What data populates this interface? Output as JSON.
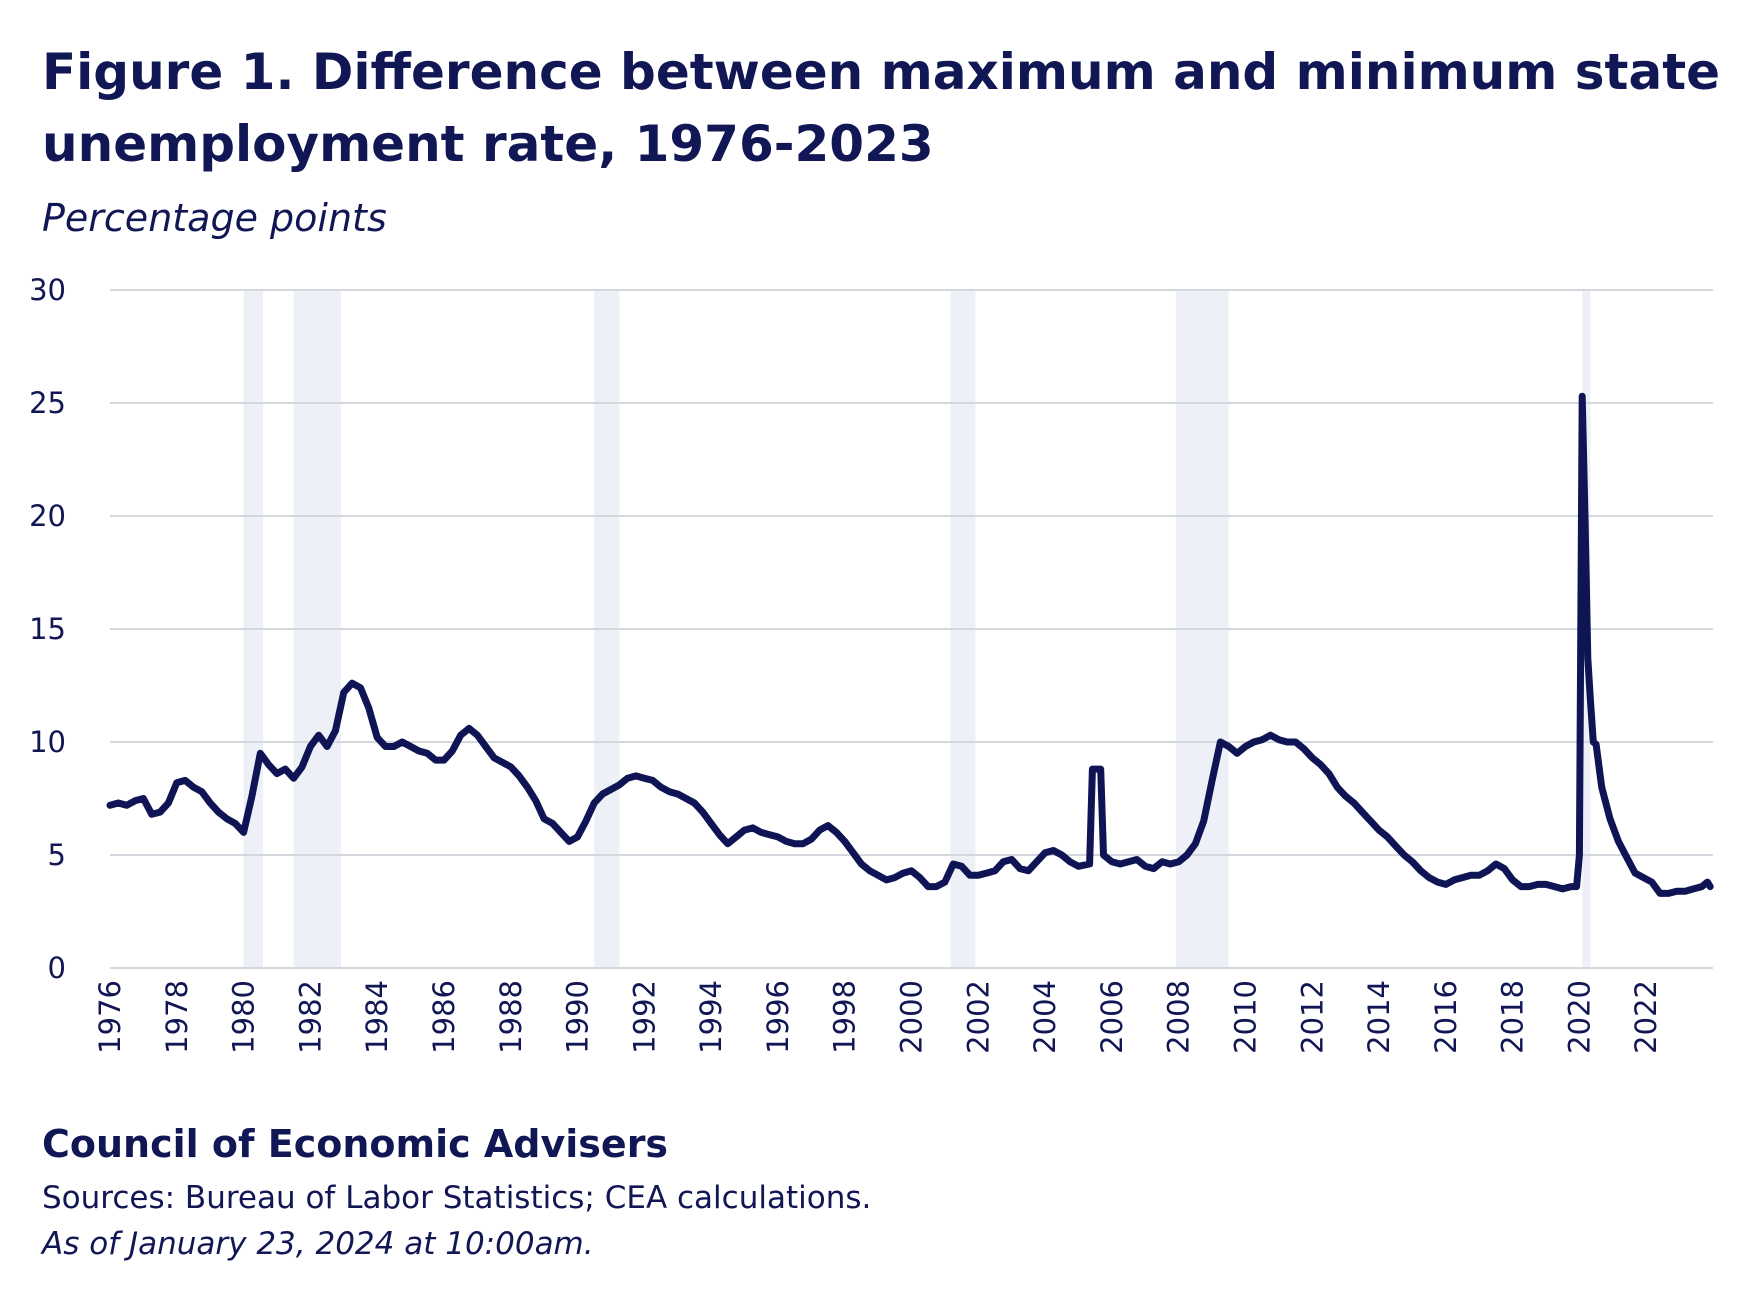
{
  "header": {
    "title": "Figure 1. Difference between maximum and minimum state unemployment rate, 1976-2023",
    "subtitle": "Percentage points"
  },
  "footer": {
    "org": "Council of Economic Advisers",
    "source": "Sources: Bureau of Labor Statistics; CEA calculations.",
    "as_of": "As of January 23, 2024 at 10:00am."
  },
  "colors": {
    "line": "#0f1454",
    "recession_band": "#edf1f7",
    "grid": "#d4d7de",
    "axis_text": "#111654"
  },
  "chart_data": {
    "type": "line",
    "title": "Figure 1. Difference between maximum and minimum state unemployment rate, 1976-2023",
    "subtitle": "Percentage points",
    "xlabel": "",
    "ylabel": "Percentage points",
    "xlim": [
      "1976-01",
      "2023-12"
    ],
    "ylim": [
      0,
      30
    ],
    "y_ticks": [
      "0",
      "5",
      "10",
      "15",
      "20",
      "25",
      "30"
    ],
    "x_ticks": [
      "1976",
      "1978",
      "1980",
      "1982",
      "1984",
      "1986",
      "1988",
      "1990",
      "1992",
      "1994",
      "1996",
      "1998",
      "2000",
      "2002",
      "2004",
      "2006",
      "2008",
      "2010",
      "2012",
      "2014",
      "2016",
      "2018",
      "2020",
      "2022"
    ],
    "x_tick_orientation": "vertical",
    "grid": "horizontal",
    "legend": "none",
    "recessions": [
      {
        "start": "1980-01",
        "end": "1980-07"
      },
      {
        "start": "1981-07",
        "end": "1982-11"
      },
      {
        "start": "1990-07",
        "end": "1991-03"
      },
      {
        "start": "2001-03",
        "end": "2001-11"
      },
      {
        "start": "2007-12",
        "end": "2009-06"
      },
      {
        "start": "2020-02",
        "end": "2020-04"
      }
    ],
    "series": [
      {
        "points": [
          [
            "1976-01",
            7.2
          ],
          [
            "1976-04",
            7.3
          ],
          [
            "1976-07",
            7.2
          ],
          [
            "1976-10",
            7.4
          ],
          [
            "1977-01",
            7.5
          ],
          [
            "1977-04",
            6.8
          ],
          [
            "1977-07",
            6.9
          ],
          [
            "1977-10",
            7.3
          ],
          [
            "1978-01",
            8.2
          ],
          [
            "1978-04",
            8.3
          ],
          [
            "1978-07",
            8.0
          ],
          [
            "1978-10",
            7.8
          ],
          [
            "1979-01",
            7.3
          ],
          [
            "1979-04",
            6.9
          ],
          [
            "1979-07",
            6.6
          ],
          [
            "1979-10",
            6.4
          ],
          [
            "1980-01",
            6.0
          ],
          [
            "1980-04",
            7.6
          ],
          [
            "1980-07",
            9.5
          ],
          [
            "1980-10",
            9.0
          ],
          [
            "1981-01",
            8.6
          ],
          [
            "1981-04",
            8.8
          ],
          [
            "1981-07",
            8.4
          ],
          [
            "1981-10",
            8.9
          ],
          [
            "1982-01",
            9.8
          ],
          [
            "1982-04",
            10.3
          ],
          [
            "1982-07",
            9.8
          ],
          [
            "1982-10",
            10.5
          ],
          [
            "1983-01",
            12.2
          ],
          [
            "1983-04",
            12.6
          ],
          [
            "1983-07",
            12.4
          ],
          [
            "1983-10",
            11.5
          ],
          [
            "1984-01",
            10.2
          ],
          [
            "1984-04",
            9.8
          ],
          [
            "1984-07",
            9.8
          ],
          [
            "1984-10",
            10.0
          ],
          [
            "1985-01",
            9.8
          ],
          [
            "1985-04",
            9.6
          ],
          [
            "1985-07",
            9.5
          ],
          [
            "1985-10",
            9.2
          ],
          [
            "1986-01",
            9.2
          ],
          [
            "1986-04",
            9.6
          ],
          [
            "1986-07",
            10.3
          ],
          [
            "1986-10",
            10.6
          ],
          [
            "1987-01",
            10.3
          ],
          [
            "1987-04",
            9.8
          ],
          [
            "1987-07",
            9.3
          ],
          [
            "1987-10",
            9.1
          ],
          [
            "1988-01",
            8.9
          ],
          [
            "1988-04",
            8.5
          ],
          [
            "1988-07",
            8.0
          ],
          [
            "1988-10",
            7.4
          ],
          [
            "1989-01",
            6.6
          ],
          [
            "1989-04",
            6.4
          ],
          [
            "1989-07",
            6.0
          ],
          [
            "1989-10",
            5.6
          ],
          [
            "1990-01",
            5.8
          ],
          [
            "1990-04",
            6.5
          ],
          [
            "1990-07",
            7.3
          ],
          [
            "1990-10",
            7.7
          ],
          [
            "1991-01",
            7.9
          ],
          [
            "1991-04",
            8.1
          ],
          [
            "1991-07",
            8.4
          ],
          [
            "1991-10",
            8.5
          ],
          [
            "1992-01",
            8.4
          ],
          [
            "1992-04",
            8.3
          ],
          [
            "1992-07",
            8.0
          ],
          [
            "1992-10",
            7.8
          ],
          [
            "1993-01",
            7.7
          ],
          [
            "1993-04",
            7.5
          ],
          [
            "1993-07",
            7.3
          ],
          [
            "1993-10",
            6.9
          ],
          [
            "1994-01",
            6.4
          ],
          [
            "1994-04",
            5.9
          ],
          [
            "1994-07",
            5.5
          ],
          [
            "1994-10",
            5.8
          ],
          [
            "1995-01",
            6.1
          ],
          [
            "1995-04",
            6.2
          ],
          [
            "1995-07",
            6.0
          ],
          [
            "1995-10",
            5.9
          ],
          [
            "1996-01",
            5.8
          ],
          [
            "1996-04",
            5.6
          ],
          [
            "1996-07",
            5.5
          ],
          [
            "1996-10",
            5.5
          ],
          [
            "1997-01",
            5.7
          ],
          [
            "1997-04",
            6.1
          ],
          [
            "1997-07",
            6.3
          ],
          [
            "1997-10",
            6.0
          ],
          [
            "1998-01",
            5.6
          ],
          [
            "1998-04",
            5.1
          ],
          [
            "1998-07",
            4.6
          ],
          [
            "1998-10",
            4.3
          ],
          [
            "1999-01",
            4.1
          ],
          [
            "1999-04",
            3.9
          ],
          [
            "1999-07",
            4.0
          ],
          [
            "1999-10",
            4.2
          ],
          [
            "2000-01",
            4.3
          ],
          [
            "2000-04",
            4.0
          ],
          [
            "2000-07",
            3.6
          ],
          [
            "2000-10",
            3.6
          ],
          [
            "2001-01",
            3.8
          ],
          [
            "2001-04",
            4.6
          ],
          [
            "2001-07",
            4.5
          ],
          [
            "2001-10",
            4.1
          ],
          [
            "2002-01",
            4.1
          ],
          [
            "2002-04",
            4.2
          ],
          [
            "2002-07",
            4.3
          ],
          [
            "2002-10",
            4.7
          ],
          [
            "2003-01",
            4.8
          ],
          [
            "2003-04",
            4.4
          ],
          [
            "2003-07",
            4.3
          ],
          [
            "2003-10",
            4.7
          ],
          [
            "2004-01",
            5.1
          ],
          [
            "2004-04",
            5.2
          ],
          [
            "2004-07",
            5.0
          ],
          [
            "2004-10",
            4.7
          ],
          [
            "2005-01",
            4.5
          ],
          [
            "2005-05",
            4.6
          ],
          [
            "2005-06",
            8.8
          ],
          [
            "2005-09",
            8.8
          ],
          [
            "2005-10",
            5.0
          ],
          [
            "2006-01",
            4.7
          ],
          [
            "2006-04",
            4.6
          ],
          [
            "2006-07",
            4.7
          ],
          [
            "2006-10",
            4.8
          ],
          [
            "2007-01",
            4.5
          ],
          [
            "2007-04",
            4.4
          ],
          [
            "2007-07",
            4.7
          ],
          [
            "2007-10",
            4.6
          ],
          [
            "2008-01",
            4.7
          ],
          [
            "2008-04",
            5.0
          ],
          [
            "2008-07",
            5.5
          ],
          [
            "2008-10",
            6.5
          ],
          [
            "2009-01",
            8.3
          ],
          [
            "2009-04",
            10.0
          ],
          [
            "2009-07",
            9.8
          ],
          [
            "2009-10",
            9.5
          ],
          [
            "2010-01",
            9.8
          ],
          [
            "2010-04",
            10.0
          ],
          [
            "2010-07",
            10.1
          ],
          [
            "2010-10",
            10.3
          ],
          [
            "2011-01",
            10.1
          ],
          [
            "2011-04",
            10.0
          ],
          [
            "2011-07",
            10.0
          ],
          [
            "2011-10",
            9.7
          ],
          [
            "2012-01",
            9.3
          ],
          [
            "2012-04",
            9.0
          ],
          [
            "2012-07",
            8.6
          ],
          [
            "2012-10",
            8.0
          ],
          [
            "2013-01",
            7.6
          ],
          [
            "2013-04",
            7.3
          ],
          [
            "2013-07",
            6.9
          ],
          [
            "2013-10",
            6.5
          ],
          [
            "2014-01",
            6.1
          ],
          [
            "2014-04",
            5.8
          ],
          [
            "2014-07",
            5.4
          ],
          [
            "2014-10",
            5.0
          ],
          [
            "2015-01",
            4.7
          ],
          [
            "2015-04",
            4.3
          ],
          [
            "2015-07",
            4.0
          ],
          [
            "2015-10",
            3.8
          ],
          [
            "2016-01",
            3.7
          ],
          [
            "2016-04",
            3.9
          ],
          [
            "2016-07",
            4.0
          ],
          [
            "2016-10",
            4.1
          ],
          [
            "2017-01",
            4.1
          ],
          [
            "2017-04",
            4.3
          ],
          [
            "2017-07",
            4.6
          ],
          [
            "2017-10",
            4.4
          ],
          [
            "2018-01",
            3.9
          ],
          [
            "2018-04",
            3.6
          ],
          [
            "2018-07",
            3.6
          ],
          [
            "2018-10",
            3.7
          ],
          [
            "2019-01",
            3.7
          ],
          [
            "2019-04",
            3.6
          ],
          [
            "2019-07",
            3.5
          ],
          [
            "2019-10",
            3.6
          ],
          [
            "2019-12",
            3.6
          ],
          [
            "2020-01",
            5.0
          ],
          [
            "2020-02",
            25.3
          ],
          [
            "2020-03",
            20.0
          ],
          [
            "2020-04",
            13.7
          ],
          [
            "2020-05",
            11.8
          ],
          [
            "2020-06",
            10.0
          ],
          [
            "2020-07",
            9.9
          ],
          [
            "2020-09",
            8.0
          ],
          [
            "2020-12",
            6.6
          ],
          [
            "2021-03",
            5.6
          ],
          [
            "2021-06",
            4.9
          ],
          [
            "2021-09",
            4.2
          ],
          [
            "2021-12",
            4.0
          ],
          [
            "2022-03",
            3.8
          ],
          [
            "2022-06",
            3.3
          ],
          [
            "2022-09",
            3.3
          ],
          [
            "2022-12",
            3.4
          ],
          [
            "2023-03",
            3.4
          ],
          [
            "2023-06",
            3.5
          ],
          [
            "2023-09",
            3.6
          ],
          [
            "2023-11",
            3.8
          ],
          [
            "2023-12",
            3.6
          ]
        ]
      }
    ]
  }
}
